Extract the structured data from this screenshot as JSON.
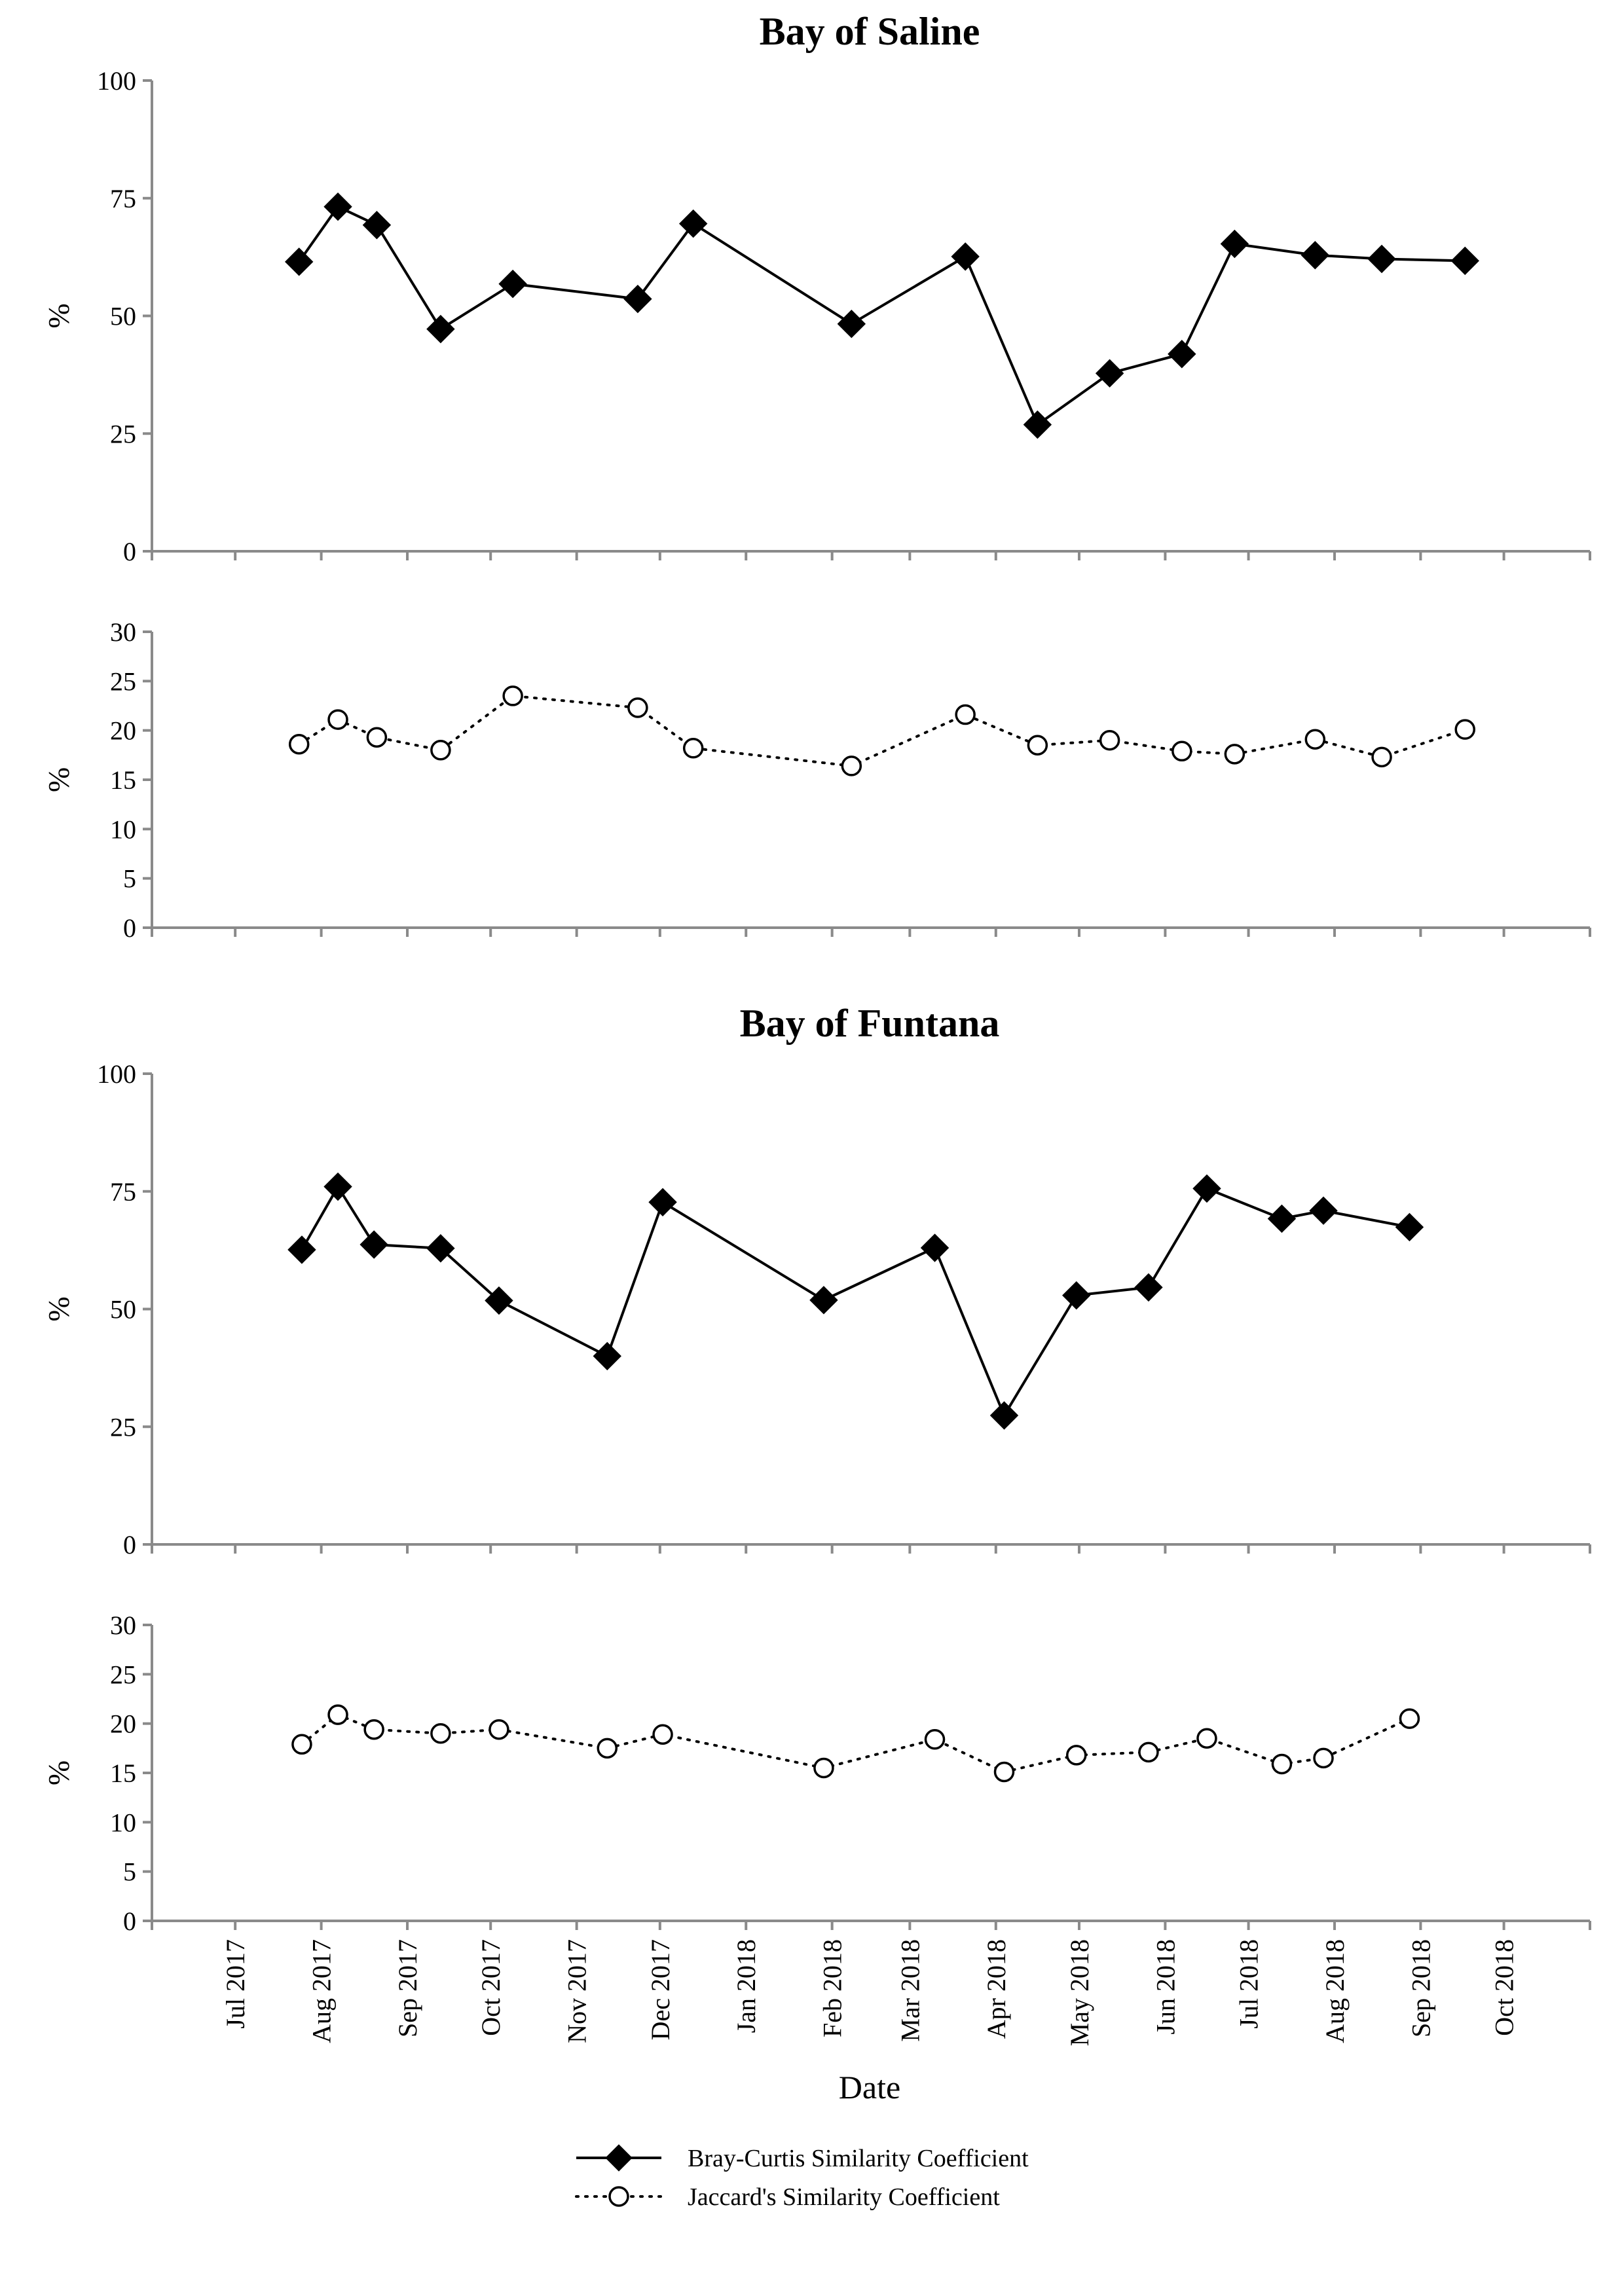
{
  "chart_data": [
    {
      "type": "line",
      "title": "Bay of Saline",
      "ylabel": "%",
      "ylim": [
        0,
        100
      ],
      "yticks": [
        0,
        25,
        50,
        75,
        100
      ],
      "grid": false,
      "series": [
        {
          "name": "Bray-Curtis Similarity Coefficient",
          "points": [
            {
              "x": "2017-07-24",
              "y": 61.5
            },
            {
              "x": "2017-08-07",
              "y": 73.2
            },
            {
              "x": "2017-08-21",
              "y": 69.3
            },
            {
              "x": "2017-09-13",
              "y": 47.2
            },
            {
              "x": "2017-10-09",
              "y": 56.8
            },
            {
              "x": "2017-11-23",
              "y": 53.6
            },
            {
              "x": "2017-12-13",
              "y": 69.6
            },
            {
              "x": "2018-02-08",
              "y": 48.3
            },
            {
              "x": "2018-03-21",
              "y": 62.6
            },
            {
              "x": "2018-04-16",
              "y": 26.9
            },
            {
              "x": "2018-05-12",
              "y": 37.8
            },
            {
              "x": "2018-06-07",
              "y": 41.9
            },
            {
              "x": "2018-06-26",
              "y": 65.3
            },
            {
              "x": "2018-07-25",
              "y": 62.9
            },
            {
              "x": "2018-08-18",
              "y": 62.1
            },
            {
              "x": "2018-09-17",
              "y": 61.7
            }
          ]
        }
      ]
    },
    {
      "type": "line",
      "ylabel": "%",
      "ylim": [
        0,
        30
      ],
      "yticks": [
        0,
        5,
        10,
        15,
        20,
        25,
        30
      ],
      "grid": false,
      "series": [
        {
          "name": "Jaccard's Similarity Coefficient",
          "points": [
            {
              "x": "2017-07-24",
              "y": 18.6
            },
            {
              "x": "2017-08-07",
              "y": 21.1
            },
            {
              "x": "2017-08-21",
              "y": 19.3
            },
            {
              "x": "2017-09-13",
              "y": 18.0
            },
            {
              "x": "2017-10-09",
              "y": 23.5
            },
            {
              "x": "2017-11-23",
              "y": 22.3
            },
            {
              "x": "2017-12-13",
              "y": 18.2
            },
            {
              "x": "2018-02-08",
              "y": 16.4
            },
            {
              "x": "2018-03-21",
              "y": 21.6
            },
            {
              "x": "2018-04-16",
              "y": 18.5
            },
            {
              "x": "2018-05-12",
              "y": 19.0
            },
            {
              "x": "2018-06-07",
              "y": 17.9
            },
            {
              "x": "2018-06-26",
              "y": 17.6
            },
            {
              "x": "2018-07-25",
              "y": 19.1
            },
            {
              "x": "2018-08-18",
              "y": 17.3
            },
            {
              "x": "2018-09-17",
              "y": 20.1
            }
          ]
        }
      ]
    },
    {
      "type": "line",
      "title": "Bay of Funtana",
      "ylabel": "%",
      "ylim": [
        0,
        100
      ],
      "yticks": [
        0,
        25,
        50,
        75,
        100
      ],
      "grid": false,
      "series": [
        {
          "name": "Bray-Curtis Similarity Coefficient",
          "points": [
            {
              "x": "2017-07-25",
              "y": 62.6
            },
            {
              "x": "2017-08-07",
              "y": 76.0
            },
            {
              "x": "2017-08-20",
              "y": 63.7
            },
            {
              "x": "2017-09-13",
              "y": 62.9
            },
            {
              "x": "2017-10-04",
              "y": 51.8
            },
            {
              "x": "2017-11-12",
              "y": 40.0
            },
            {
              "x": "2017-12-02",
              "y": 72.7
            },
            {
              "x": "2018-01-29",
              "y": 51.9
            },
            {
              "x": "2018-03-10",
              "y": 63.0
            },
            {
              "x": "2018-04-04",
              "y": 27.4
            },
            {
              "x": "2018-04-30",
              "y": 52.9
            },
            {
              "x": "2018-05-26",
              "y": 54.6
            },
            {
              "x": "2018-06-16",
              "y": 75.6
            },
            {
              "x": "2018-07-13",
              "y": 69.2
            },
            {
              "x": "2018-07-28",
              "y": 70.9
            },
            {
              "x": "2018-08-28",
              "y": 67.4
            }
          ]
        }
      ]
    },
    {
      "type": "line",
      "xlabel": "Date",
      "ylabel": "%",
      "ylim": [
        0,
        30
      ],
      "yticks": [
        0,
        5,
        10,
        15,
        20,
        25,
        30
      ],
      "xticks": [
        "Jul 2017",
        "Aug 2017",
        "Sep 2017",
        "Oct 2017",
        "Nov 2017",
        "Dec 2017",
        "Jan 2018",
        "Feb 2018",
        "Mar 2018",
        "Apr 2018",
        "May 2018",
        "Jun 2018",
        "Jul 2018",
        "Aug 2018",
        "Sep 2018",
        "Oct 2018"
      ],
      "grid": false,
      "series": [
        {
          "name": "Jaccard's Similarity Coefficient",
          "points": [
            {
              "x": "2017-07-25",
              "y": 17.9
            },
            {
              "x": "2017-08-07",
              "y": 20.9
            },
            {
              "x": "2017-08-20",
              "y": 19.4
            },
            {
              "x": "2017-09-13",
              "y": 19.0
            },
            {
              "x": "2017-10-04",
              "y": 19.4
            },
            {
              "x": "2017-11-12",
              "y": 17.5
            },
            {
              "x": "2017-12-02",
              "y": 18.9
            },
            {
              "x": "2018-01-29",
              "y": 15.5
            },
            {
              "x": "2018-03-10",
              "y": 18.4
            },
            {
              "x": "2018-04-04",
              "y": 15.1
            },
            {
              "x": "2018-04-30",
              "y": 16.8
            },
            {
              "x": "2018-05-26",
              "y": 17.1
            },
            {
              "x": "2018-06-16",
              "y": 18.5
            },
            {
              "x": "2018-07-13",
              "y": 15.9
            },
            {
              "x": "2018-07-28",
              "y": 16.5
            },
            {
              "x": "2018-08-28",
              "y": 20.5
            }
          ]
        }
      ]
    }
  ],
  "legend": {
    "placement": "bottom-center",
    "items": [
      {
        "label": "Bray-Curtis Similarity Coefficient",
        "marker": "filled-diamond",
        "line": "solid"
      },
      {
        "label": "Jaccard's Similarity Coefficient",
        "marker": "open-circle",
        "line": "dotted"
      }
    ]
  }
}
